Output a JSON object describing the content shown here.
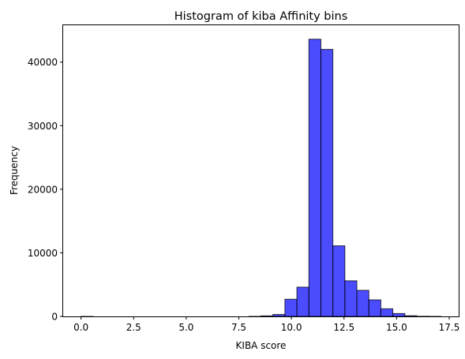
{
  "chart_data": {
    "type": "bar",
    "title": "Histogram of kiba Affinity bins",
    "xlabel": "KIBA score",
    "ylabel": "Frequency",
    "xlim": [
      -0.85,
      17.95
    ],
    "ylim": [
      0,
      45800
    ],
    "xticks": [
      0,
      2.5,
      5,
      7.5,
      10,
      12.5,
      15,
      17.5
    ],
    "xtick_labels": [
      "0.0",
      "2.5",
      "5.0",
      "7.5",
      "10.0",
      "12.5",
      "15.0",
      "17.5"
    ],
    "yticks": [
      0,
      10000,
      20000,
      30000,
      40000
    ],
    "ytick_labels": [
      "0",
      "10000",
      "20000",
      "30000",
      "40000"
    ],
    "grid": false,
    "bar_color": "#0000ff",
    "bar_alpha": 0.7,
    "edge_color": "#000000",
    "bins": [
      {
        "x0": 0.0,
        "x1": 0.57,
        "count": 2
      },
      {
        "x0": 0.57,
        "x1": 1.14,
        "count": 0
      },
      {
        "x0": 1.14,
        "x1": 1.71,
        "count": 0
      },
      {
        "x0": 1.71,
        "x1": 2.28,
        "count": 0
      },
      {
        "x0": 2.28,
        "x1": 2.85,
        "count": 0
      },
      {
        "x0": 2.85,
        "x1": 3.42,
        "count": 0
      },
      {
        "x0": 3.42,
        "x1": 3.99,
        "count": 0
      },
      {
        "x0": 3.99,
        "x1": 4.56,
        "count": 0
      },
      {
        "x0": 4.56,
        "x1": 5.13,
        "count": 0
      },
      {
        "x0": 5.13,
        "x1": 5.7,
        "count": 0
      },
      {
        "x0": 5.7,
        "x1": 6.27,
        "count": 0
      },
      {
        "x0": 6.27,
        "x1": 6.84,
        "count": 0
      },
      {
        "x0": 6.84,
        "x1": 7.41,
        "count": 0
      },
      {
        "x0": 7.41,
        "x1": 7.98,
        "count": 0
      },
      {
        "x0": 7.98,
        "x1": 8.55,
        "count": 5
      },
      {
        "x0": 8.55,
        "x1": 9.12,
        "count": 80
      },
      {
        "x0": 9.12,
        "x1": 9.69,
        "count": 300
      },
      {
        "x0": 9.69,
        "x1": 10.26,
        "count": 2700
      },
      {
        "x0": 10.26,
        "x1": 10.83,
        "count": 4600
      },
      {
        "x0": 10.83,
        "x1": 11.4,
        "count": 43600
      },
      {
        "x0": 11.4,
        "x1": 11.97,
        "count": 42000
      },
      {
        "x0": 11.97,
        "x1": 12.54,
        "count": 11100
      },
      {
        "x0": 12.54,
        "x1": 13.11,
        "count": 5600
      },
      {
        "x0": 13.11,
        "x1": 13.68,
        "count": 4100
      },
      {
        "x0": 13.68,
        "x1": 14.25,
        "count": 2600
      },
      {
        "x0": 14.25,
        "x1": 14.82,
        "count": 1200
      },
      {
        "x0": 14.82,
        "x1": 15.39,
        "count": 450
      },
      {
        "x0": 15.39,
        "x1": 15.96,
        "count": 100
      },
      {
        "x0": 15.96,
        "x1": 16.53,
        "count": 20
      },
      {
        "x0": 16.53,
        "x1": 17.1,
        "count": 5
      }
    ]
  }
}
